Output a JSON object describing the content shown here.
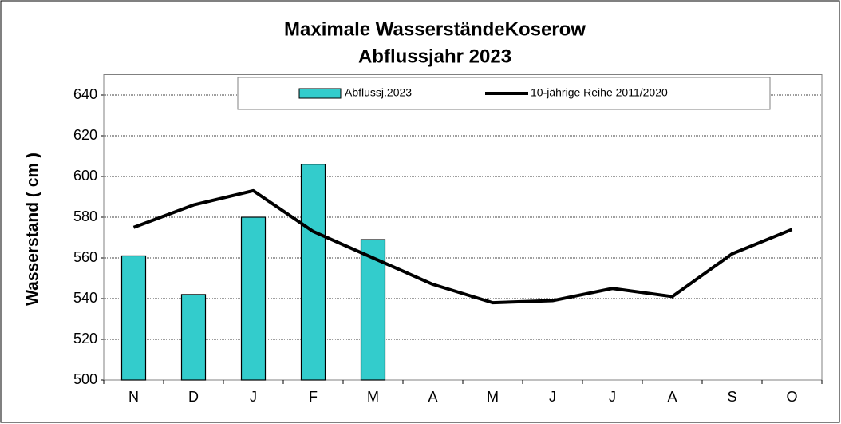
{
  "chart_data": {
    "type": "bar",
    "title": [
      "Maximale WasserständeKoserow",
      "Abflussjahr 2023"
    ],
    "y_label": "Wasserstand  ( cm )",
    "categories": [
      "N",
      "D",
      "J",
      "F",
      "M",
      "A",
      "M",
      "J",
      "J",
      "A",
      "S",
      "O"
    ],
    "series": [
      {
        "name": "Abflussj.2023",
        "type": "bar",
        "color": "#33cccc",
        "values": [
          561,
          542,
          580,
          606,
          569,
          null,
          null,
          null,
          null,
          null,
          null,
          null
        ]
      },
      {
        "name": "10-jährige Reihe  2011/2020",
        "type": "line",
        "color": "#000000",
        "values": [
          575,
          586,
          593,
          573,
          560,
          547,
          538,
          539,
          545,
          541,
          562,
          574
        ]
      }
    ],
    "ylim": [
      500,
      650
    ],
    "yticks": [
      500,
      520,
      540,
      560,
      580,
      600,
      620,
      640
    ],
    "grid": true,
    "legend": "top"
  }
}
